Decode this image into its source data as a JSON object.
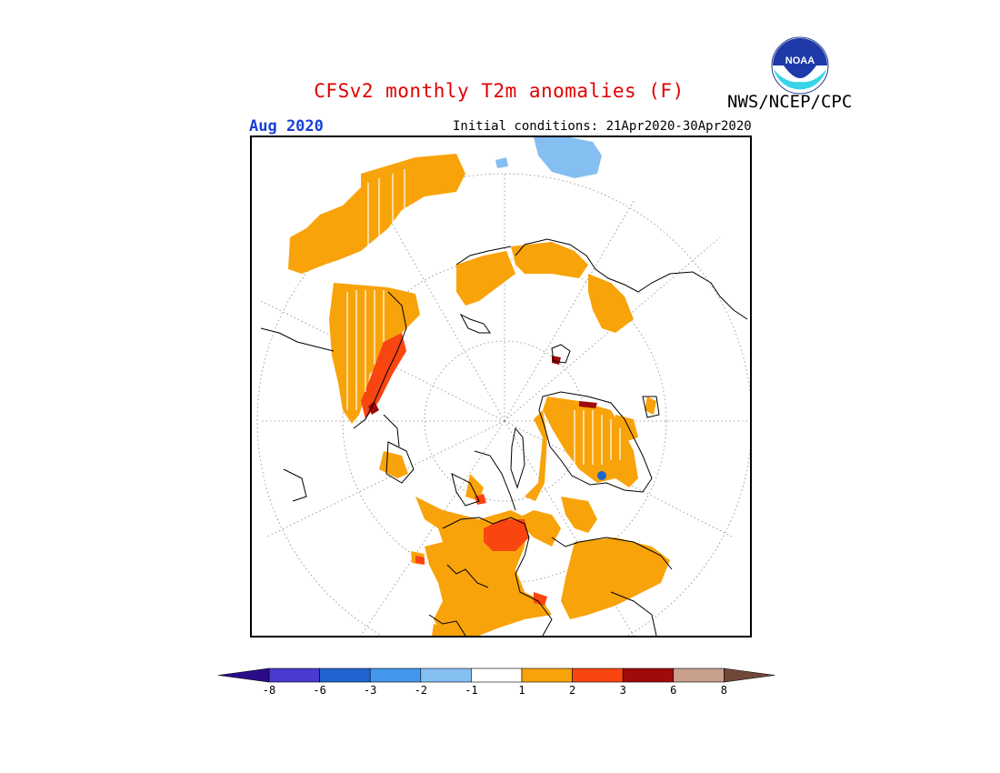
{
  "header": {
    "title": "CFSv2 monthly T2m anomalies (F)",
    "agency": "NWS/NCEP/CPC",
    "logo_text": "NOAA",
    "period": "Aug 2020",
    "initial_conditions": "Initial conditions: 21Apr2020-30Apr2020"
  },
  "map": {
    "projection": "north-polar-stereographic",
    "variable": "T2m anomaly",
    "units": "F"
  },
  "colorbar": {
    "labels": [
      "-8",
      "-6",
      "-3",
      "-2",
      "-1",
      "1",
      "2",
      "3",
      "6",
      "8"
    ],
    "colors": [
      "#2a0c8a",
      "#4a3ad0",
      "#1f64cf",
      "#4397ec",
      "#85bff2",
      "#ffffff",
      "#f9a30a",
      "#f94510",
      "#a00a0a",
      "#c9a08c",
      "#70483a"
    ]
  }
}
